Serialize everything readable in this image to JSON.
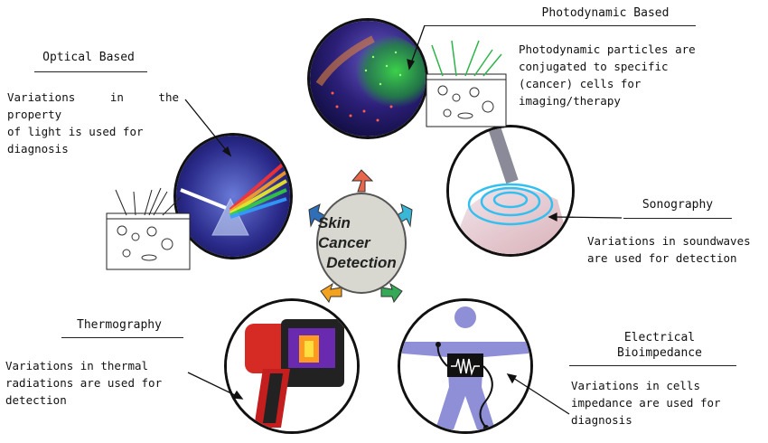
{
  "center": {
    "line1": "Skin Cancer",
    "line2": "Detection"
  },
  "methods": [
    {
      "id": "optical",
      "title": "Optical Based",
      "lines": [
        "Variations in the property",
        "of light is used for",
        "diagnosis"
      ]
    },
    {
      "id": "photodynamic",
      "title": "Photodynamic Based",
      "lines": [
        "Photodynamic particles are",
        "conjugated to specific",
        "(cancer) cells for",
        "imaging/therapy"
      ]
    },
    {
      "id": "sonography",
      "title": "Sonography",
      "lines": [
        "Variations in soundwaves",
        "are used for detection"
      ]
    },
    {
      "id": "thermography",
      "title": "Thermography",
      "lines": [
        "Variations in thermal",
        "radiations are used for",
        "detection"
      ]
    },
    {
      "id": "electrical",
      "title_line1": "Electrical",
      "title_line2": "Bioimpedance",
      "lines": [
        "Variations in cells",
        "impedance are used for",
        "diagnosis"
      ]
    }
  ],
  "colors": {
    "arrow_top": "#e8664a",
    "arrow_left_upper": "#2f6fb8",
    "arrow_right_upper": "#3ab7d6",
    "arrow_left_lower": "#f2a21e",
    "arrow_right_lower": "#35a957",
    "center_fill": "#d8d8d0",
    "figure_blue": "#8e8fd6"
  },
  "icons": [
    "prism-icon",
    "skin-cell-icon",
    "fluorescence-icon",
    "ultrasound-icon",
    "thermal-camera-icon",
    "body-electrode-icon"
  ]
}
